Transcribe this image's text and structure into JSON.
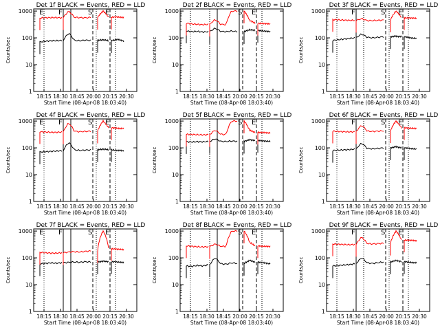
{
  "chart_data": [
    {
      "type": "line",
      "title": "Det 1f BLACK = Events, RED = LLD",
      "ylabel": "Counts/sec",
      "xlabel": "Start Time (08-Apr-08 18:03:40)",
      "yscale": "log",
      "ylim": [
        1,
        1200
      ],
      "xticks": [
        "18:15",
        "18:30",
        "18:45",
        "20:00",
        "20:15",
        "20:30"
      ],
      "yticks": [
        "1",
        "10",
        "100",
        "1000"
      ],
      "markers": [
        {
          "label": "E",
          "style": "dotted"
        },
        {
          "label": "F",
          "style": "solid"
        },
        {
          "label": "",
          "style": "solid"
        },
        {
          "label": "S",
          "style": "dashed"
        },
        {
          "label": "",
          "style": "dotted"
        },
        {
          "label": "E",
          "style": "dashed"
        },
        {
          "label": "",
          "style": "dotted"
        }
      ],
      "series": [
        {
          "name": "Events",
          "color": "#000000",
          "values": [
            70,
            75,
            78,
            78,
            80,
            150,
            80,
            78,
            82,
            80,
            85,
            78,
            88,
            75
          ]
        },
        {
          "name": "LLD",
          "color": "#ff0000",
          "values": [
            550,
            560,
            570,
            570,
            560,
            1000,
            580,
            570,
            560,
            580,
            1000,
            590,
            600,
            580
          ]
        }
      ]
    },
    {
      "type": "line",
      "title": "Det 2f BLACK = Events, RED = LLD",
      "ylabel": "Counts/sec",
      "xlabel": "Start Time (08-Apr-08 18:03:40)",
      "yscale": "log",
      "ylim": [
        1,
        1200
      ],
      "xticks": [
        "18:15",
        "18:30",
        "18:45",
        "20:00",
        "20:15",
        "20:30"
      ],
      "yticks": [
        "1",
        "10",
        "100",
        "1000"
      ],
      "markers": [
        {
          "label": "",
          "style": "dotted"
        },
        {
          "label": "",
          "style": "dotted"
        },
        {
          "label": "",
          "style": "solid"
        },
        {
          "label": "",
          "style": "solid"
        },
        {
          "label": "S",
          "style": "dashed"
        },
        {
          "label": "E",
          "style": "dashed"
        },
        {
          "label": "",
          "style": "dotted"
        }
      ],
      "series": [
        {
          "name": "Events",
          "color": "#000000",
          "values": [
            180,
            170,
            175,
            165,
            170,
            230,
            175,
            170,
            180,
            170,
            200,
            190,
            180,
            170
          ]
        },
        {
          "name": "LLD",
          "color": "#ff0000",
          "values": [
            350,
            330,
            320,
            310,
            320,
            480,
            320,
            310,
            1000,
            1000,
            450,
            350,
            340,
            330
          ]
        }
      ]
    },
    {
      "type": "line",
      "title": "Det 3f BLACK = Events, RED = LLD",
      "ylabel": "Counts/sec",
      "xlabel": "Start Time (08-Apr-08 18:03:40)",
      "yscale": "log",
      "ylim": [
        1,
        1200
      ],
      "xticks": [
        "18:15",
        "18:30",
        "18:45",
        "20:00",
        "20:15",
        "20:30"
      ],
      "yticks": [
        "1",
        "10",
        "100",
        "1000"
      ],
      "markers": [
        {
          "label": "",
          "style": "dotted"
        },
        {
          "label": "F",
          "style": "solid"
        },
        {
          "label": "",
          "style": "dotted"
        },
        {
          "label": "S",
          "style": "dashed"
        },
        {
          "label": "",
          "style": "dotted"
        },
        {
          "label": "E",
          "style": "dashed"
        },
        {
          "label": "",
          "style": "dotted"
        }
      ],
      "series": [
        {
          "name": "Events",
          "color": "#000000",
          "values": [
            80,
            85,
            90,
            95,
            100,
            140,
            105,
            100,
            105,
            110,
            115,
            110,
            100,
            95
          ]
        },
        {
          "name": "LLD",
          "color": "#ff0000",
          "values": [
            480,
            470,
            460,
            450,
            450,
            520,
            440,
            440,
            450,
            460,
            1000,
            560,
            550,
            540
          ]
        }
      ]
    },
    {
      "type": "line",
      "title": "Det 4f BLACK = Events, RED = LLD",
      "ylabel": "Counts/sec",
      "xlabel": "Start Time (08-Apr-08 18:03:40)",
      "yscale": "log",
      "ylim": [
        1,
        1200
      ],
      "xticks": [
        "18:15",
        "18:30",
        "18:45",
        "20:00",
        "20:15",
        "20:30"
      ],
      "yticks": [
        "1",
        "10",
        "100",
        "1000"
      ],
      "markers": [
        {
          "label": "E",
          "style": "dotted"
        },
        {
          "label": "F",
          "style": "solid"
        },
        {
          "label": "",
          "style": "solid"
        },
        {
          "label": "S",
          "style": "dashed"
        },
        {
          "label": "",
          "style": "dotted"
        },
        {
          "label": "E",
          "style": "dashed"
        },
        {
          "label": "",
          "style": "dotted"
        }
      ],
      "series": [
        {
          "name": "Events",
          "color": "#000000",
          "values": [
            70,
            72,
            74,
            76,
            78,
            160,
            85,
            80,
            82,
            84,
            90,
            85,
            80,
            78
          ]
        },
        {
          "name": "LLD",
          "color": "#ff0000",
          "values": [
            400,
            390,
            380,
            380,
            390,
            850,
            420,
            400,
            410,
            420,
            1000,
            560,
            540,
            530
          ]
        }
      ]
    },
    {
      "type": "line",
      "title": "Det 5f BLACK = Events, RED = LLD",
      "ylabel": "Counts/sec",
      "xlabel": "Start Time (08-Apr-08 18:03:40)",
      "yscale": "log",
      "ylim": [
        1,
        1200
      ],
      "xticks": [
        "18:15",
        "18:30",
        "18:45",
        "20:00",
        "20:15",
        "20:30"
      ],
      "yticks": [
        "1",
        "10",
        "100",
        "1000"
      ],
      "markers": [
        {
          "label": "",
          "style": "dotted"
        },
        {
          "label": "",
          "style": "dotted"
        },
        {
          "label": "",
          "style": "solid"
        },
        {
          "label": "",
          "style": "solid"
        },
        {
          "label": "S",
          "style": "dashed"
        },
        {
          "label": "E",
          "style": "dashed"
        },
        {
          "label": "",
          "style": "dotted"
        }
      ],
      "series": [
        {
          "name": "Events",
          "color": "#000000",
          "values": [
            170,
            165,
            170,
            168,
            172,
            220,
            175,
            172,
            180,
            175,
            200,
            190,
            180,
            175
          ]
        },
        {
          "name": "LLD",
          "color": "#ff0000",
          "values": [
            320,
            315,
            310,
            305,
            310,
            460,
            320,
            315,
            1000,
            1000,
            450,
            380,
            370,
            360
          ]
        }
      ]
    },
    {
      "type": "line",
      "title": "Det 6f BLACK = Events, RED = LLD",
      "ylabel": "Counts/sec",
      "xlabel": "Start Time (08-Apr-08 18:03:40)",
      "yscale": "log",
      "ylim": [
        1,
        1200
      ],
      "xticks": [
        "18:15",
        "18:30",
        "18:45",
        "20:00",
        "20:15",
        "20:30"
      ],
      "yticks": [
        "1",
        "10",
        "100",
        "1000"
      ],
      "markers": [
        {
          "label": "",
          "style": "dotted"
        },
        {
          "label": "F",
          "style": "solid"
        },
        {
          "label": "",
          "style": "dotted"
        },
        {
          "label": "S",
          "style": "dashed"
        },
        {
          "label": "",
          "style": "dotted"
        },
        {
          "label": "E",
          "style": "dashed"
        },
        {
          "label": "",
          "style": "dotted"
        }
      ],
      "series": [
        {
          "name": "Events",
          "color": "#000000",
          "values": [
            80,
            82,
            84,
            86,
            90,
            150,
            95,
            92,
            95,
            100,
            110,
            100,
            95,
            90
          ]
        },
        {
          "name": "LLD",
          "color": "#ff0000",
          "values": [
            420,
            410,
            400,
            395,
            400,
            700,
            420,
            410,
            420,
            430,
            1000,
            560,
            540,
            530
          ]
        }
      ]
    },
    {
      "type": "line",
      "title": "Det 7f BLACK = Events, RED = LLD",
      "ylabel": "Counts/sec",
      "xlabel": "Start Time (08-Apr-08 18:03:40)",
      "yscale": "log",
      "ylim": [
        1,
        1200
      ],
      "xticks": [
        "18:15",
        "18:30",
        "18:45",
        "20:00",
        "20:15",
        "20:30"
      ],
      "yticks": [
        "1",
        "10",
        "100",
        "1000"
      ],
      "markers": [
        {
          "label": "E",
          "style": "dotted"
        },
        {
          "label": "F",
          "style": "solid"
        },
        {
          "label": "",
          "style": "solid"
        },
        {
          "label": "S",
          "style": "dashed"
        },
        {
          "label": "",
          "style": "dotted"
        },
        {
          "label": "E",
          "style": "dashed"
        },
        {
          "label": "",
          "style": "dotted"
        }
      ],
      "series": [
        {
          "name": "Events",
          "color": "#000000",
          "values": [
            60,
            62,
            65,
            63,
            66,
            68,
            70,
            68,
            72,
            70,
            75,
            72,
            70,
            68
          ]
        },
        {
          "name": "LLD",
          "color": "#ff0000",
          "values": [
            160,
            155,
            150,
            150,
            155,
            165,
            170,
            165,
            175,
            180,
            1000,
            220,
            210,
            205
          ]
        }
      ]
    },
    {
      "type": "line",
      "title": "Det 8f BLACK = Events, RED = LLD",
      "ylabel": "Counts/sec",
      "xlabel": "Start Time (08-Apr-08 18:03:40)",
      "yscale": "log",
      "ylim": [
        1,
        1200
      ],
      "xticks": [
        "18:15",
        "18:30",
        "18:45",
        "20:00",
        "20:15",
        "20:30"
      ],
      "yticks": [
        "1",
        "10",
        "100",
        "1000"
      ],
      "markers": [
        {
          "label": "",
          "style": "dotted"
        },
        {
          "label": "",
          "style": "dotted"
        },
        {
          "label": "",
          "style": "solid"
        },
        {
          "label": "",
          "style": "solid"
        },
        {
          "label": "S",
          "style": "dashed"
        },
        {
          "label": "E",
          "style": "dashed"
        },
        {
          "label": "",
          "style": "dotted"
        }
      ],
      "series": [
        {
          "name": "Events",
          "color": "#000000",
          "values": [
            50,
            48,
            52,
            50,
            55,
            100,
            60,
            58,
            65,
            62,
            80,
            70,
            65,
            60
          ]
        },
        {
          "name": "LLD",
          "color": "#ff0000",
          "values": [
            280,
            270,
            260,
            255,
            260,
            330,
            270,
            265,
            1000,
            1000,
            380,
            280,
            270,
            265
          ]
        }
      ]
    },
    {
      "type": "line",
      "title": "Det 9f BLACK = Events, RED = LLD",
      "ylabel": "Counts/sec",
      "xlabel": "Start Time (08-Apr-08 18:03:40)",
      "yscale": "log",
      "ylim": [
        1,
        1200
      ],
      "xticks": [
        "18:15",
        "18:30",
        "18:45",
        "20:00",
        "20:15",
        "20:30"
      ],
      "yticks": [
        "1",
        "10",
        "100",
        "1000"
      ],
      "markers": [
        {
          "label": "",
          "style": "dotted"
        },
        {
          "label": "F",
          "style": "solid"
        },
        {
          "label": "",
          "style": "dotted"
        },
        {
          "label": "S",
          "style": "dashed"
        },
        {
          "label": "",
          "style": "dotted"
        },
        {
          "label": "E",
          "style": "dashed"
        },
        {
          "label": "",
          "style": "dotted"
        }
      ],
      "series": [
        {
          "name": "Events",
          "color": "#000000",
          "values": [
            50,
            52,
            54,
            56,
            60,
            100,
            65,
            62,
            66,
            70,
            80,
            72,
            68,
            65
          ]
        },
        {
          "name": "LLD",
          "color": "#ff0000",
          "values": [
            330,
            320,
            315,
            310,
            315,
            600,
            340,
            330,
            340,
            350,
            1000,
            460,
            450,
            440
          ]
        }
      ]
    }
  ]
}
